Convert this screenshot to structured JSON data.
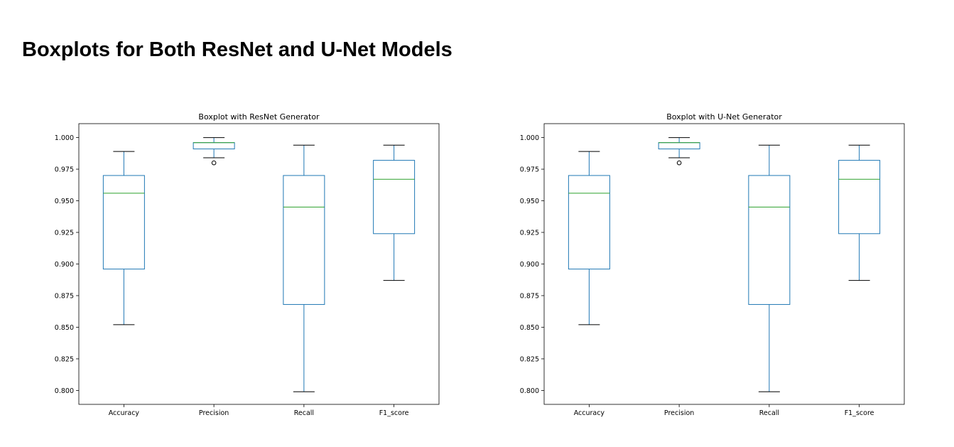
{
  "page": {
    "title": "Boxplots for Both ResNet and U-Net Models"
  },
  "chart_data": [
    {
      "type": "box",
      "title": "Boxplot with ResNet Generator",
      "xlabel": "",
      "ylabel": "",
      "ylim": [
        0.789,
        1.011
      ],
      "yticks": [
        "1.000",
        "0.975",
        "0.950",
        "0.925",
        "0.900",
        "0.875",
        "0.850",
        "0.825",
        "0.800"
      ],
      "grid": false,
      "colors": {
        "box": "#1f77b4",
        "median": "#2ca02c",
        "whisker_cap": "#000000",
        "frame": "#000000"
      },
      "categories": [
        "Accuracy",
        "Precision",
        "Recall",
        "F1_score"
      ],
      "boxes": [
        {
          "category": "Accuracy",
          "whislo": 0.852,
          "q1": 0.896,
          "med": 0.956,
          "q3": 0.97,
          "whishi": 0.989,
          "fliers": []
        },
        {
          "category": "Precision",
          "whislo": 0.984,
          "q1": 0.991,
          "med": 0.996,
          "q3": 0.996,
          "whishi": 1.0,
          "fliers": [
            0.98
          ]
        },
        {
          "category": "Recall",
          "whislo": 0.799,
          "q1": 0.868,
          "med": 0.945,
          "q3": 0.97,
          "whishi": 0.994,
          "fliers": []
        },
        {
          "category": "F1_score",
          "whislo": 0.887,
          "q1": 0.924,
          "med": 0.967,
          "q3": 0.982,
          "whishi": 0.994,
          "fliers": []
        }
      ]
    },
    {
      "type": "box",
      "title": "Boxplot with U-Net Generator",
      "xlabel": "",
      "ylabel": "",
      "ylim": [
        0.789,
        1.011
      ],
      "yticks": [
        "1.000",
        "0.975",
        "0.950",
        "0.925",
        "0.900",
        "0.875",
        "0.850",
        "0.825",
        "0.800"
      ],
      "grid": false,
      "colors": {
        "box": "#1f77b4",
        "median": "#2ca02c",
        "whisker_cap": "#000000",
        "frame": "#000000"
      },
      "categories": [
        "Accuracy",
        "Precision",
        "Recall",
        "F1_score"
      ],
      "boxes": [
        {
          "category": "Accuracy",
          "whislo": 0.852,
          "q1": 0.896,
          "med": 0.956,
          "q3": 0.97,
          "whishi": 0.989,
          "fliers": []
        },
        {
          "category": "Precision",
          "whislo": 0.984,
          "q1": 0.991,
          "med": 0.996,
          "q3": 0.996,
          "whishi": 1.0,
          "fliers": [
            0.98
          ]
        },
        {
          "category": "Recall",
          "whislo": 0.799,
          "q1": 0.868,
          "med": 0.945,
          "q3": 0.97,
          "whishi": 0.994,
          "fliers": []
        },
        {
          "category": "F1_score",
          "whislo": 0.887,
          "q1": 0.924,
          "med": 0.967,
          "q3": 0.982,
          "whishi": 0.994,
          "fliers": []
        }
      ]
    }
  ]
}
